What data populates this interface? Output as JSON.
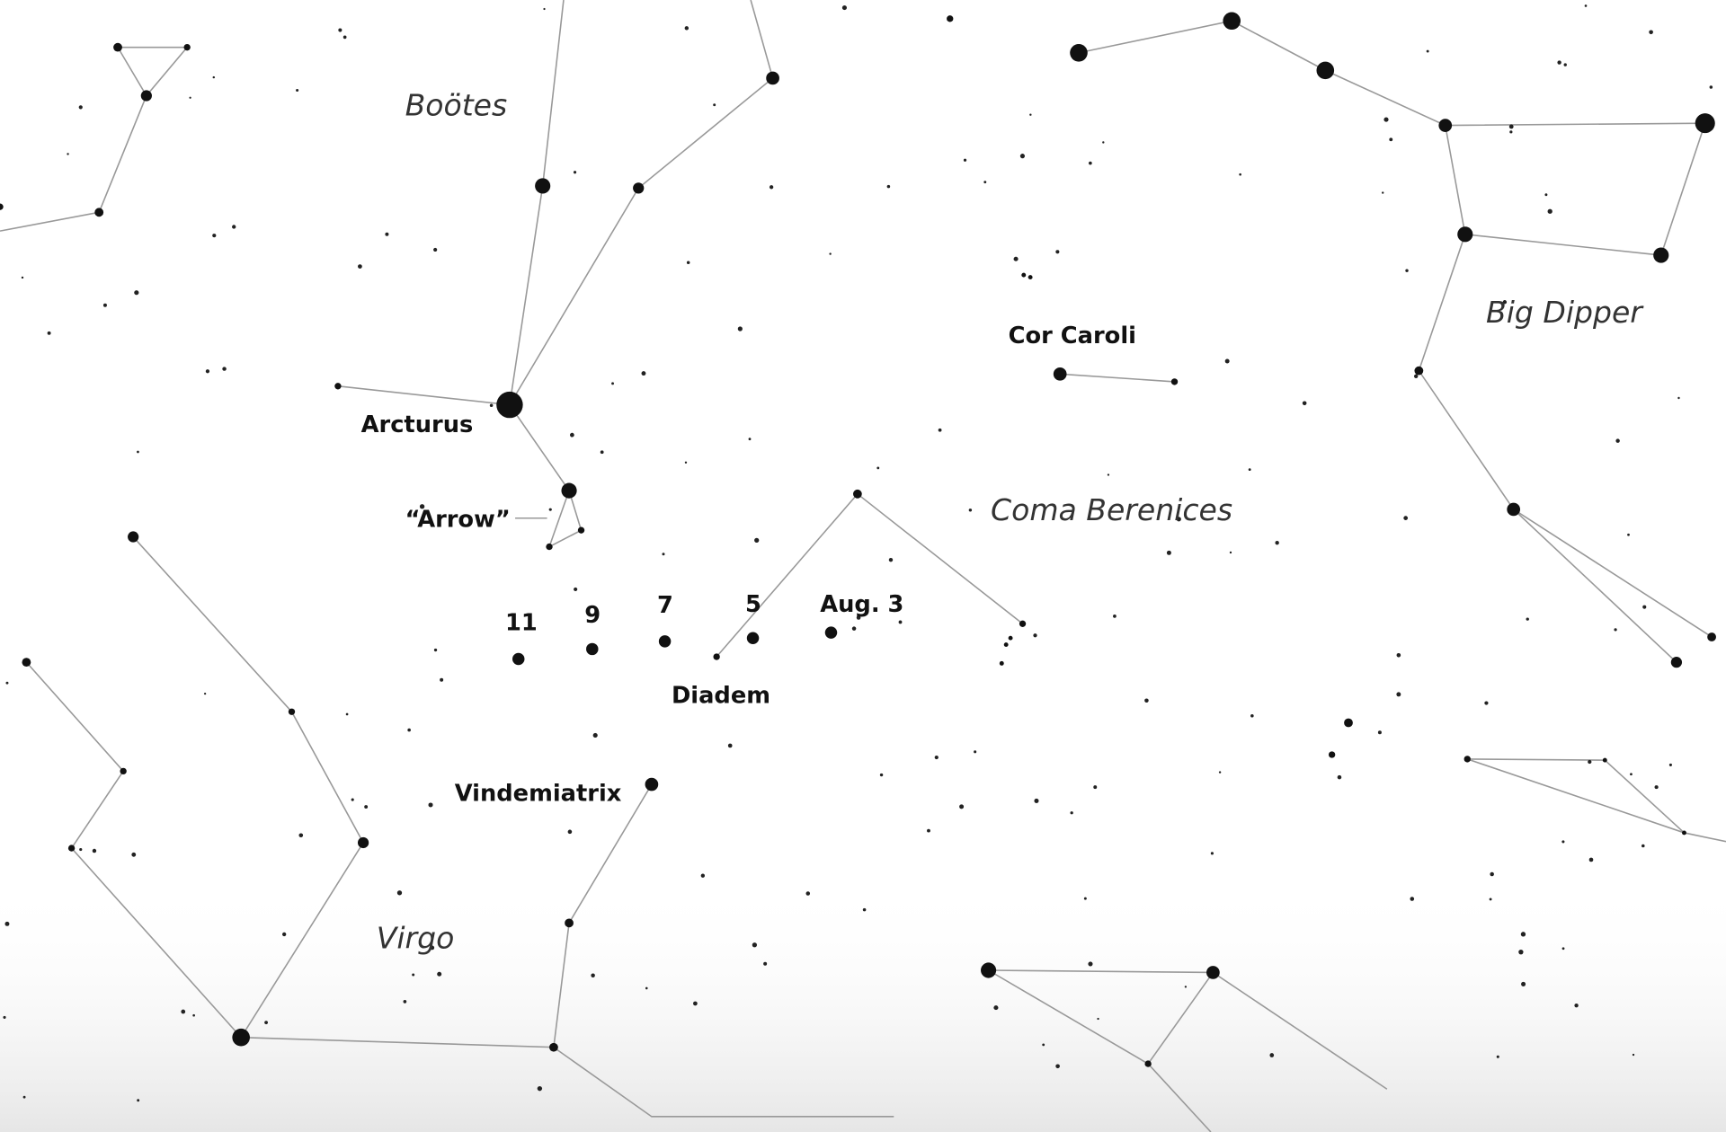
{
  "constellations": [
    "Boötes",
    "Coma Berenices",
    "Big Dipper",
    "Virgo"
  ],
  "stars": [
    "Arcturus",
    "“Arrow”",
    "Cor Caroli",
    "Diadem",
    "Vindemiatrix"
  ],
  "comet_dates": [
    "11",
    "9",
    "7",
    "5",
    "Aug. 3"
  ]
}
